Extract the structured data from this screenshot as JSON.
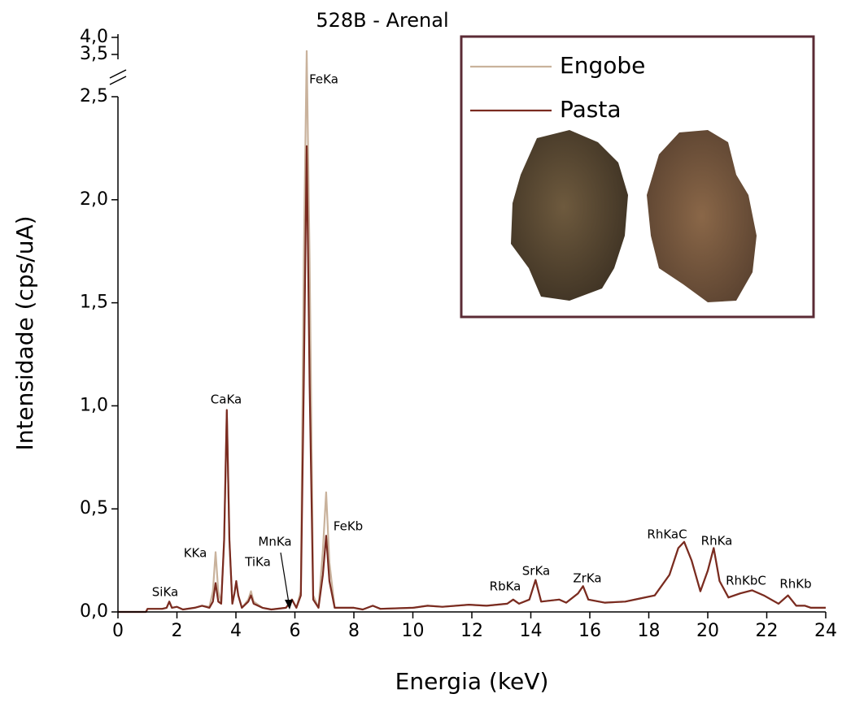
{
  "chart_data": {
    "type": "line",
    "title": "528B - Arenal",
    "x_label": "Energia (keV)",
    "y_label": "Intensidade (cps/uA)",
    "x": [
      0,
      0.95,
      1.0,
      1.5,
      1.65,
      1.74,
      1.83,
      2.0,
      2.2,
      2.6,
      2.85,
      3.1,
      3.22,
      3.31,
      3.4,
      3.5,
      3.6,
      3.69,
      3.78,
      3.88,
      3.95,
      4.01,
      4.08,
      4.2,
      4.42,
      4.51,
      4.6,
      4.9,
      5.2,
      5.7,
      5.9,
      6.05,
      6.2,
      6.3,
      6.4,
      6.5,
      6.62,
      6.8,
      6.95,
      7.06,
      7.17,
      7.35,
      8.0,
      8.3,
      8.64,
      8.9,
      10.0,
      10.5,
      11.0,
      11.9,
      12.5,
      13.2,
      13.4,
      13.6,
      13.95,
      14.16,
      14.35,
      14.96,
      15.2,
      15.6,
      15.77,
      15.95,
      16.5,
      17.2,
      17.7,
      18.2,
      18.7,
      19.0,
      19.2,
      19.45,
      19.75,
      20.0,
      20.2,
      20.4,
      20.7,
      21.1,
      21.5,
      21.9,
      22.4,
      22.72,
      23.0,
      23.3,
      23.5,
      24
    ],
    "series": [
      {
        "name": "Engobe",
        "color": "#c9b29c",
        "values": [
          0,
          0,
          0.015,
          0.015,
          0.02,
          0.05,
          0.02,
          0.025,
          0.012,
          0.02,
          0.03,
          0.025,
          0.1,
          0.29,
          0.1,
          0.04,
          0.34,
          0.97,
          0.34,
          0.04,
          0.09,
          0.14,
          0.08,
          0.02,
          0.06,
          0.1,
          0.05,
          0.02,
          0.012,
          0.02,
          0.06,
          0.02,
          0.1,
          1.7,
          3.6,
          1.7,
          0.08,
          0.02,
          0.3,
          0.58,
          0.24,
          0.02,
          0.02,
          0.012,
          0.03,
          0.015,
          0.02,
          0.03,
          0.025,
          0.035,
          0.03,
          0.04,
          0.06,
          0.04,
          0.06,
          0.155,
          0.05,
          0.06,
          0.045,
          0.09,
          0.125,
          0.06,
          0.045,
          0.05,
          0.065,
          0.08,
          0.18,
          0.31,
          0.34,
          0.25,
          0.1,
          0.2,
          0.31,
          0.15,
          0.07,
          0.09,
          0.105,
          0.08,
          0.04,
          0.08,
          0.03,
          0.03,
          0.02,
          0.02
        ]
      },
      {
        "name": "Pasta",
        "color": "#7a2b20",
        "values": [
          0,
          0,
          0.015,
          0.015,
          0.02,
          0.05,
          0.02,
          0.025,
          0.012,
          0.02,
          0.03,
          0.02,
          0.05,
          0.14,
          0.05,
          0.04,
          0.35,
          0.98,
          0.35,
          0.04,
          0.09,
          0.15,
          0.08,
          0.02,
          0.05,
          0.08,
          0.04,
          0.02,
          0.012,
          0.02,
          0.06,
          0.02,
          0.08,
          1.1,
          2.26,
          1.1,
          0.06,
          0.02,
          0.18,
          0.37,
          0.15,
          0.02,
          0.02,
          0.012,
          0.03,
          0.015,
          0.02,
          0.03,
          0.025,
          0.035,
          0.03,
          0.04,
          0.06,
          0.04,
          0.06,
          0.155,
          0.05,
          0.06,
          0.045,
          0.09,
          0.125,
          0.06,
          0.045,
          0.05,
          0.065,
          0.08,
          0.18,
          0.31,
          0.34,
          0.25,
          0.1,
          0.2,
          0.31,
          0.15,
          0.07,
          0.09,
          0.105,
          0.08,
          0.04,
          0.08,
          0.03,
          0.03,
          0.02,
          0.02
        ]
      }
    ],
    "xlim": [
      0,
      24
    ],
    "xticks": [
      0,
      2,
      4,
      6,
      8,
      10,
      12,
      14,
      16,
      18,
      20,
      22,
      24
    ],
    "ylim": [
      0,
      4.0
    ],
    "axis_break": [
      2.5,
      3.5
    ],
    "yticks": [
      {
        "value": 0,
        "label": "0,0"
      },
      {
        "value": 0.5,
        "label": "0,5"
      },
      {
        "value": 1.0,
        "label": "1,0"
      },
      {
        "value": 1.5,
        "label": "1,5"
      },
      {
        "value": 2.0,
        "label": "2,0"
      },
      {
        "value": 2.5,
        "label": "2,5"
      },
      {
        "value": 3.5,
        "label": "3,5"
      },
      {
        "value": 4.0,
        "label": "4,0"
      }
    ],
    "annotations": [
      "SiKa",
      "KKa",
      "CaKa",
      "TiKa",
      "MnKa",
      "FeKa",
      "FeKb",
      "RbKa",
      "SrKa",
      "ZrKa",
      "RhKaC",
      "RhKa",
      "RhKbC",
      "RhKb"
    ],
    "legend_position": "upper right"
  }
}
